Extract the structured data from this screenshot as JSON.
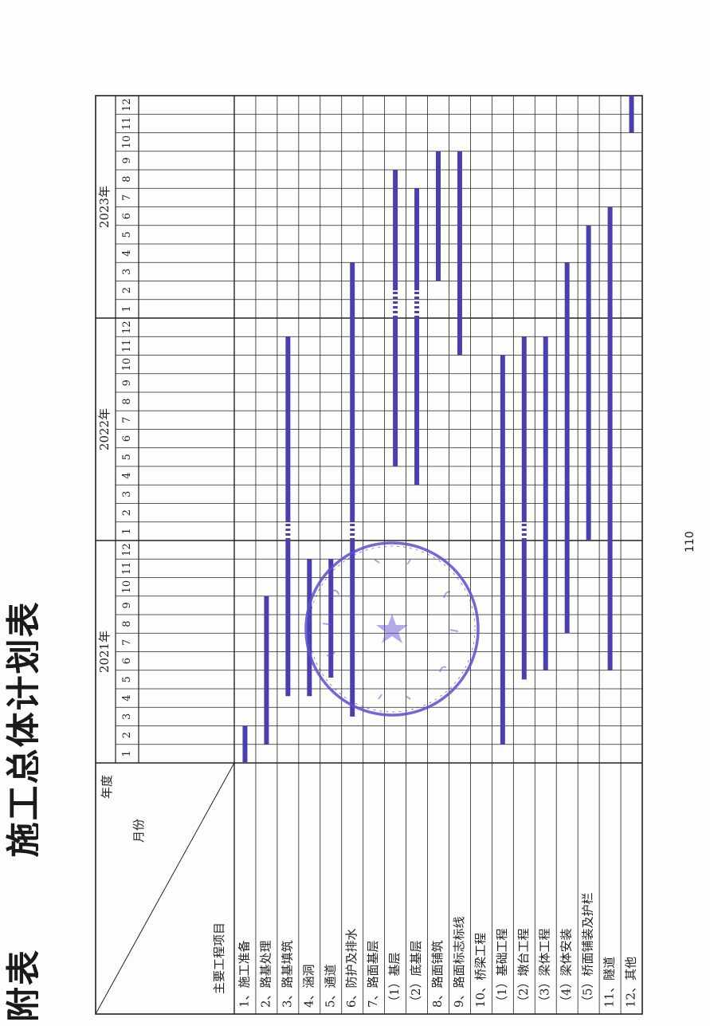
{
  "document": {
    "title_fragment_left": "附表",
    "title_fragment_right": "施工总体计划表",
    "page_number": "110"
  },
  "header": {
    "year_label": "年度",
    "month_label": "月份",
    "item_label": "主要工程项目",
    "years": [
      "2021年",
      "2022年",
      "2023年"
    ],
    "months": [
      "1",
      "2",
      "3",
      "4",
      "5",
      "6",
      "7",
      "8",
      "9",
      "10",
      "11",
      "12",
      "1",
      "2",
      "3",
      "4",
      "5",
      "6",
      "7",
      "8",
      "9",
      "10",
      "11",
      "12",
      "1",
      "2",
      "3",
      "4",
      "5",
      "6",
      "7",
      "8",
      "9",
      "10",
      "11",
      "12"
    ]
  },
  "items": [
    {
      "name": "1、施工准备",
      "bars": [
        {
          "start": 0.0,
          "end": 2.0,
          "style": "solid"
        }
      ]
    },
    {
      "name": "2、路基处理",
      "bars": [
        {
          "start": 1.0,
          "end": 9.0,
          "style": "solid"
        }
      ]
    },
    {
      "name": "3、路基填筑",
      "bars": [
        {
          "start": 3.6,
          "end": 12.0,
          "style": "solid"
        },
        {
          "start": 12.0,
          "end": 13.0,
          "style": "dotted"
        },
        {
          "start": 13.0,
          "end": 23.0,
          "style": "solid"
        }
      ]
    },
    {
      "name": "4、涵洞",
      "bars": [
        {
          "start": 3.6,
          "end": 11.0,
          "style": "solid"
        }
      ]
    },
    {
      "name": "5、通道",
      "bars": [
        {
          "start": 4.6,
          "end": 11.0,
          "style": "solid"
        }
      ]
    },
    {
      "name": "6、防护及排水",
      "bars": [
        {
          "start": 2.5,
          "end": 12.0,
          "style": "solid"
        },
        {
          "start": 12.0,
          "end": 13.0,
          "style": "dotted"
        },
        {
          "start": 13.0,
          "end": 27.0,
          "style": "solid"
        }
      ]
    },
    {
      "name": "7、路面基层",
      "bars": []
    },
    {
      "name": "（1）基层",
      "bars": [
        {
          "start": 16.0,
          "end": 24.0,
          "style": "solid"
        },
        {
          "start": 24.0,
          "end": 25.5,
          "style": "dotted"
        },
        {
          "start": 25.5,
          "end": 32.0,
          "style": "solid"
        }
      ]
    },
    {
      "name": "（2）底基层",
      "bars": [
        {
          "start": 15.0,
          "end": 24.0,
          "style": "solid"
        },
        {
          "start": 24.0,
          "end": 25.5,
          "style": "dotted"
        },
        {
          "start": 25.5,
          "end": 31.0,
          "style": "solid"
        }
      ]
    },
    {
      "name": "8、路面铺筑",
      "bars": [
        {
          "start": 26.0,
          "end": 33.0,
          "style": "solid"
        }
      ]
    },
    {
      "name": "9、路面标志标线",
      "bars": [
        {
          "start": 22.0,
          "end": 33.0,
          "style": "solid"
        }
      ]
    },
    {
      "name": "10、桥梁工程",
      "bars": []
    },
    {
      "name": "（1）基础工程",
      "bars": [
        {
          "start": 1.0,
          "end": 22.0,
          "style": "solid"
        }
      ]
    },
    {
      "name": "（2）墩台工程",
      "bars": [
        {
          "start": 4.5,
          "end": 12.0,
          "style": "solid"
        },
        {
          "start": 12.0,
          "end": 13.0,
          "style": "dotted"
        },
        {
          "start": 13.0,
          "end": 23.0,
          "style": "solid"
        }
      ]
    },
    {
      "name": "（3）梁体工程",
      "bars": [
        {
          "start": 5.0,
          "end": 23.0,
          "style": "solid"
        }
      ]
    },
    {
      "name": "（4）梁体安装",
      "bars": [
        {
          "start": 7.0,
          "end": 27.0,
          "style": "solid"
        }
      ]
    },
    {
      "name": "（5）桥面铺装及护栏",
      "bars": [
        {
          "start": 12.0,
          "end": 29.0,
          "style": "solid"
        }
      ]
    },
    {
      "name": "11、隧道",
      "bars": [
        {
          "start": 5.0,
          "end": 30.0,
          "style": "solid"
        }
      ]
    },
    {
      "name": "12、其他",
      "bars": [
        {
          "start": 34.0,
          "end": 36.0,
          "style": "solid"
        }
      ]
    }
  ],
  "colors": {
    "bar": "#4b3fb0",
    "line": "#222222",
    "stamp": "#5b4fd0"
  }
}
